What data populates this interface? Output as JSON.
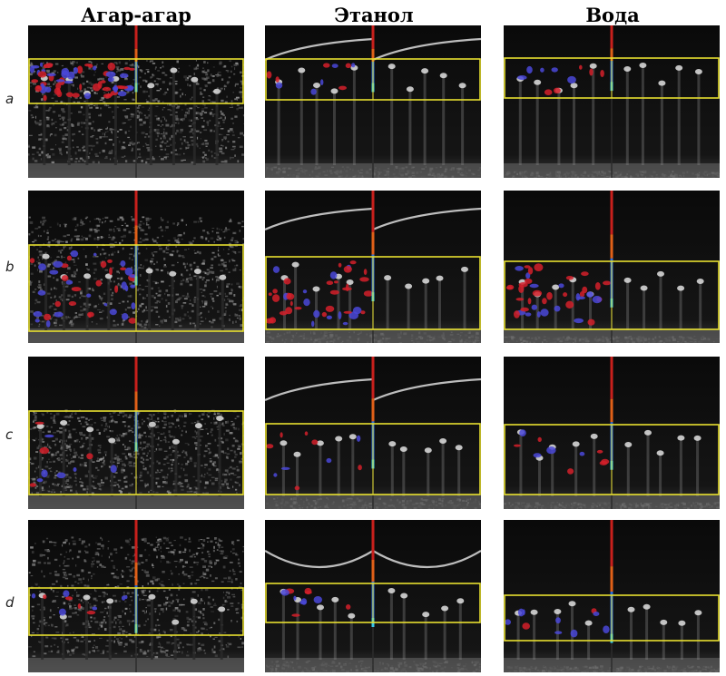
{
  "columns": [
    "Агар-агар",
    "Этанол",
    "Вода"
  ],
  "rows": [
    "a",
    "b",
    "c",
    "d"
  ],
  "colors": {
    "roi_box": "#e8e030",
    "cursor_top": "#c8201c",
    "cursor_bottom": "#2a6fe0",
    "cursor_tip": "#38c8e8",
    "doppler_red": "#d4202a",
    "doppler_blue": "#4a48d8",
    "background": "#050505"
  }
}
